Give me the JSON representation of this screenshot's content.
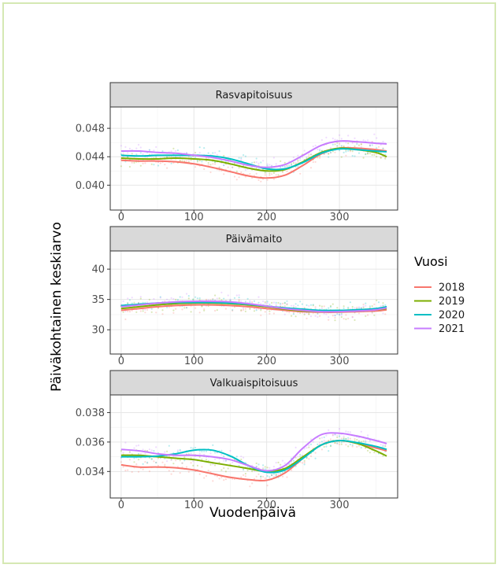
{
  "chart_data": {
    "type": "line",
    "facet": "vertical",
    "xlabel": "Vuodenpäivä",
    "ylabel": "Päiväkohtainen keskiarvo",
    "legend": {
      "title": "Vuosi",
      "position": "right",
      "entries": [
        {
          "name": "2018",
          "color": "#F8766D"
        },
        {
          "name": "2019",
          "color": "#7CAE00"
        },
        {
          "name": "2020",
          "color": "#00BFC4"
        },
        {
          "name": "2021",
          "color": "#C77CFF"
        }
      ]
    },
    "xlim": [
      -15,
      380
    ],
    "x_ticks": [
      0,
      100,
      200,
      300
    ],
    "x_tick_labels": [
      "0",
      "100",
      "200",
      "300"
    ],
    "grid": true,
    "panels": [
      {
        "title": "Rasvapitoisuus",
        "ylim": [
          0.0365,
          0.051
        ],
        "y_ticks": [
          0.04,
          0.044,
          0.048
        ],
        "y_tick_labels": [
          "0.040",
          "0.044",
          "0.048"
        ],
        "x": [
          0,
          25,
          50,
          75,
          100,
          125,
          150,
          175,
          200,
          225,
          250,
          275,
          300,
          325,
          350,
          365
        ],
        "series": [
          {
            "name": "2018",
            "values": [
              0.0435,
              0.0434,
              0.0434,
              0.0433,
              0.043,
              0.0425,
              0.0419,
              0.0413,
              0.041,
              0.0414,
              0.0428,
              0.0444,
              0.0452,
              0.0452,
              0.045,
              0.0448
            ]
          },
          {
            "name": "2019",
            "values": [
              0.0438,
              0.0437,
              0.0437,
              0.0438,
              0.0437,
              0.0435,
              0.043,
              0.0424,
              0.042,
              0.0422,
              0.0433,
              0.0446,
              0.0452,
              0.045,
              0.0446,
              0.044
            ]
          },
          {
            "name": "2020",
            "values": [
              0.0442,
              0.0441,
              0.0442,
              0.0442,
              0.0442,
              0.0441,
              0.0437,
              0.043,
              0.0423,
              0.0423,
              0.0432,
              0.0445,
              0.0451,
              0.045,
              0.0448,
              0.0447
            ]
          },
          {
            "name": "2021",
            "values": [
              0.0448,
              0.0448,
              0.0446,
              0.0445,
              0.0442,
              0.0439,
              0.0434,
              0.0428,
              0.0425,
              0.0429,
              0.0442,
              0.0456,
              0.0462,
              0.0461,
              0.0459,
              0.0458
            ]
          }
        ]
      },
      {
        "title": "Päivämaito",
        "ylim": [
          26,
          43
        ],
        "y_ticks": [
          30,
          35,
          40
        ],
        "y_tick_labels": [
          "30",
          "35",
          "40"
        ],
        "x": [
          0,
          25,
          50,
          75,
          100,
          125,
          150,
          175,
          200,
          225,
          250,
          275,
          300,
          325,
          350,
          365
        ],
        "series": [
          {
            "name": "2018",
            "values": [
              33.2,
              33.5,
              33.8,
              34.0,
              34.1,
              34.1,
              34.0,
              33.8,
              33.5,
              33.2,
              33.0,
              32.9,
              32.9,
              33.0,
              33.1,
              33.3
            ]
          },
          {
            "name": "2019",
            "values": [
              33.5,
              33.8,
              34.1,
              34.3,
              34.4,
              34.4,
              34.3,
              34.1,
              33.8,
              33.4,
              33.1,
              33.0,
              33.0,
              33.1,
              33.3,
              33.5
            ]
          },
          {
            "name": "2020",
            "values": [
              34.0,
              34.2,
              34.4,
              34.5,
              34.5,
              34.5,
              34.4,
              34.2,
              33.9,
              33.6,
              33.4,
              33.2,
              33.2,
              33.3,
              33.5,
              33.8
            ]
          },
          {
            "name": "2021",
            "values": [
              33.8,
              34.1,
              34.4,
              34.6,
              34.7,
              34.7,
              34.6,
              34.3,
              33.9,
              33.5,
              33.2,
              33.0,
              33.0,
              33.1,
              33.3,
              33.6
            ]
          }
        ]
      },
      {
        "title": "Valkuaispitoisuus",
        "ylim": [
          0.0322,
          0.0392
        ],
        "y_ticks": [
          0.034,
          0.036,
          0.038
        ],
        "y_tick_labels": [
          "0.034",
          "0.036",
          "0.038"
        ],
        "x": [
          0,
          25,
          50,
          75,
          100,
          125,
          150,
          175,
          200,
          225,
          250,
          275,
          300,
          325,
          350,
          365
        ],
        "series": [
          {
            "name": "2018",
            "values": [
              0.03445,
              0.0343,
              0.0343,
              0.03425,
              0.0341,
              0.03385,
              0.0336,
              0.03345,
              0.0334,
              0.0339,
              0.0349,
              0.0358,
              0.0361,
              0.0359,
              0.0356,
              0.0354
            ]
          },
          {
            "name": "2019",
            "values": [
              0.0351,
              0.0351,
              0.035,
              0.0349,
              0.0348,
              0.0346,
              0.0344,
              0.0342,
              0.034,
              0.0342,
              0.035,
              0.0358,
              0.0361,
              0.0359,
              0.0354,
              0.03505
            ]
          },
          {
            "name": "2020",
            "values": [
              0.035,
              0.035,
              0.03505,
              0.0352,
              0.03545,
              0.03545,
              0.03505,
              0.0344,
              0.03395,
              0.0341,
              0.0349,
              0.0358,
              0.0361,
              0.03595,
              0.0357,
              0.0355
            ]
          },
          {
            "name": "2021",
            "values": [
              0.0355,
              0.0354,
              0.0352,
              0.0351,
              0.0351,
              0.035,
              0.0348,
              0.0344,
              0.03405,
              0.0344,
              0.0356,
              0.0365,
              0.0366,
              0.0364,
              0.0361,
              0.0359
            ]
          }
        ]
      }
    ]
  }
}
